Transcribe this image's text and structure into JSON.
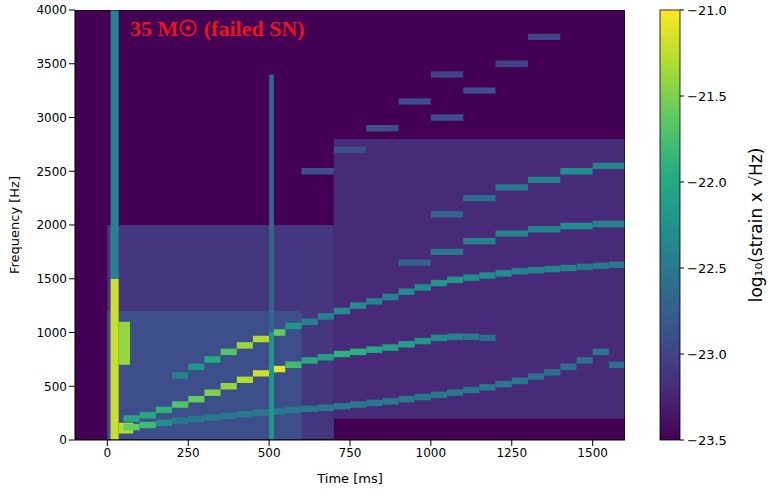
{
  "chart_data": {
    "type": "heatmap",
    "title": "35 M☉ (failed SN)",
    "x_label": "Time [ms]",
    "y_label": "Frequency [Hz]",
    "xlim": [
      -100,
      1600
    ],
    "xticks": [
      0,
      250,
      500,
      750,
      1000,
      1250,
      1500
    ],
    "ylim": [
      0,
      4000
    ],
    "yticks": [
      0,
      500,
      1000,
      1500,
      2000,
      2500,
      3000,
      3500,
      4000
    ],
    "colorbar_label": "log₁₀(strain x √Hz)",
    "colorbar_range": [
      -23.5,
      -21
    ],
    "colorbar_ticks": [
      {
        "value": -21,
        "label": "−21.0"
      },
      {
        "value": -21.5,
        "label": "−21.5"
      },
      {
        "value": -22,
        "label": "−22.0"
      },
      {
        "value": -22.5,
        "label": "−22.5"
      },
      {
        "value": -23,
        "label": "−23.0"
      },
      {
        "value": -23.5,
        "label": "−23.5"
      }
    ],
    "cells": [
      [
        0,
        700,
        0,
        2000,
        -23.1
      ],
      [
        700,
        1600,
        200,
        2800,
        -23.2
      ],
      [
        0,
        600,
        0,
        1200,
        -22.9
      ],
      [
        10,
        35,
        0,
        1500,
        -21.2
      ],
      [
        10,
        35,
        1500,
        4000,
        -22.4
      ],
      [
        35,
        70,
        700,
        1100,
        -21.4
      ],
      [
        35,
        80,
        60,
        160,
        -21.3
      ],
      [
        50,
        100,
        90,
        150,
        -21.6
      ],
      [
        100,
        150,
        110,
        170,
        -21.8
      ],
      [
        150,
        200,
        130,
        190,
        -22.3
      ],
      [
        200,
        250,
        150,
        210,
        -22.5
      ],
      [
        250,
        300,
        165,
        225,
        -22.5
      ],
      [
        300,
        350,
        180,
        240,
        -22.5
      ],
      [
        350,
        400,
        195,
        255,
        -22.5
      ],
      [
        400,
        450,
        210,
        270,
        -22.5
      ],
      [
        450,
        500,
        225,
        285,
        -22.5
      ],
      [
        500,
        550,
        235,
        295,
        -22.5
      ],
      [
        550,
        600,
        250,
        310,
        -22.5
      ],
      [
        600,
        650,
        260,
        320,
        -22.5
      ],
      [
        650,
        700,
        270,
        330,
        -22.5
      ],
      [
        700,
        750,
        285,
        345,
        -22.5
      ],
      [
        750,
        800,
        300,
        360,
        -22.5
      ],
      [
        800,
        850,
        315,
        375,
        -22.5
      ],
      [
        850,
        900,
        330,
        390,
        -22.5
      ],
      [
        900,
        950,
        350,
        410,
        -22.5
      ],
      [
        950,
        1000,
        370,
        430,
        -22.5
      ],
      [
        1000,
        1050,
        390,
        450,
        -22.5
      ],
      [
        1050,
        1100,
        410,
        470,
        -22.5
      ],
      [
        1100,
        1150,
        435,
        495,
        -22.5
      ],
      [
        1150,
        1200,
        460,
        520,
        -22.5
      ],
      [
        1200,
        1250,
        490,
        550,
        -22.5
      ],
      [
        1250,
        1300,
        520,
        580,
        -22.5
      ],
      [
        1300,
        1350,
        560,
        620,
        -22.6
      ],
      [
        1350,
        1400,
        600,
        660,
        -22.6
      ],
      [
        1400,
        1450,
        650,
        710,
        -22.6
      ],
      [
        1450,
        1500,
        710,
        770,
        -22.6
      ],
      [
        1500,
        1550,
        790,
        850,
        -22.5
      ],
      [
        1550,
        1600,
        670,
        730,
        -22.6
      ],
      [
        50,
        100,
        170,
        230,
        -22.0
      ],
      [
        100,
        150,
        200,
        260,
        -22.0
      ],
      [
        150,
        200,
        250,
        310,
        -21.9
      ],
      [
        200,
        250,
        300,
        360,
        -21.7
      ],
      [
        250,
        300,
        350,
        410,
        -21.6
      ],
      [
        300,
        350,
        410,
        470,
        -21.5
      ],
      [
        350,
        400,
        470,
        530,
        -21.4
      ],
      [
        400,
        450,
        530,
        590,
        -21.3
      ],
      [
        450,
        500,
        590,
        650,
        -21.2
      ],
      [
        500,
        550,
        630,
        690,
        -21.1
      ],
      [
        550,
        600,
        670,
        730,
        -21.8
      ],
      [
        600,
        650,
        710,
        770,
        -22.0
      ],
      [
        650,
        700,
        740,
        800,
        -22.1
      ],
      [
        700,
        750,
        770,
        830,
        -21.9
      ],
      [
        750,
        800,
        790,
        850,
        -21.9
      ],
      [
        800,
        850,
        810,
        870,
        -22.0
      ],
      [
        850,
        900,
        830,
        890,
        -22.1
      ],
      [
        900,
        950,
        860,
        920,
        -22.1
      ],
      [
        950,
        1000,
        890,
        950,
        -22.2
      ],
      [
        1000,
        1050,
        920,
        980,
        -22.3
      ],
      [
        1050,
        1100,
        930,
        990,
        -22.4
      ],
      [
        1100,
        1150,
        930,
        990,
        -22.5
      ],
      [
        1150,
        1200,
        920,
        980,
        -22.6
      ],
      [
        200,
        250,
        570,
        630,
        -22.4
      ],
      [
        250,
        300,
        650,
        710,
        -22.2
      ],
      [
        300,
        350,
        720,
        780,
        -22.0
      ],
      [
        350,
        400,
        790,
        850,
        -21.7
      ],
      [
        400,
        450,
        850,
        910,
        -21.4
      ],
      [
        450,
        500,
        910,
        970,
        -21.3
      ],
      [
        500,
        550,
        970,
        1030,
        -21.6
      ],
      [
        550,
        600,
        1030,
        1090,
        -22.2
      ],
      [
        600,
        650,
        1070,
        1130,
        -22.4
      ],
      [
        650,
        700,
        1120,
        1180,
        -22.4
      ],
      [
        700,
        750,
        1170,
        1230,
        -22.3
      ],
      [
        750,
        800,
        1220,
        1280,
        -22.3
      ],
      [
        800,
        850,
        1260,
        1320,
        -22.4
      ],
      [
        850,
        900,
        1300,
        1360,
        -22.4
      ],
      [
        900,
        950,
        1350,
        1410,
        -22.3
      ],
      [
        950,
        1000,
        1390,
        1450,
        -22.3
      ],
      [
        1000,
        1050,
        1430,
        1490,
        -22.2
      ],
      [
        1050,
        1100,
        1460,
        1520,
        -22.2
      ],
      [
        1100,
        1150,
        1480,
        1540,
        -22.3
      ],
      [
        1150,
        1200,
        1500,
        1560,
        -22.3
      ],
      [
        1200,
        1250,
        1520,
        1580,
        -22.3
      ],
      [
        1250,
        1300,
        1540,
        1600,
        -22.4
      ],
      [
        1300,
        1350,
        1550,
        1610,
        -22.4
      ],
      [
        1350,
        1400,
        1560,
        1620,
        -22.4
      ],
      [
        1400,
        1450,
        1570,
        1630,
        -22.4
      ],
      [
        1450,
        1500,
        1580,
        1640,
        -22.5
      ],
      [
        1500,
        1550,
        1590,
        1650,
        -22.5
      ],
      [
        1550,
        1600,
        1600,
        1660,
        -22.5
      ],
      [
        900,
        1000,
        1620,
        1680,
        -22.7
      ],
      [
        1000,
        1100,
        1720,
        1780,
        -22.5
      ],
      [
        1100,
        1200,
        1820,
        1880,
        -22.4
      ],
      [
        1200,
        1300,
        1890,
        1950,
        -22.4
      ],
      [
        1300,
        1400,
        1930,
        1990,
        -22.4
      ],
      [
        1400,
        1500,
        1960,
        2020,
        -22.3
      ],
      [
        1500,
        1600,
        1980,
        2040,
        -22.4
      ],
      [
        1000,
        1100,
        2070,
        2130,
        -22.7
      ],
      [
        1100,
        1200,
        2220,
        2280,
        -22.6
      ],
      [
        1200,
        1300,
        2320,
        2380,
        -22.5
      ],
      [
        1300,
        1400,
        2390,
        2450,
        -22.4
      ],
      [
        1400,
        1500,
        2470,
        2530,
        -22.3
      ],
      [
        1500,
        1600,
        2520,
        2580,
        -22.4
      ],
      [
        600,
        700,
        2470,
        2530,
        -22.9
      ],
      [
        700,
        800,
        2670,
        2730,
        -22.9
      ],
      [
        800,
        900,
        2870,
        2930,
        -22.9
      ],
      [
        900,
        1000,
        3120,
        3180,
        -22.9
      ],
      [
        1000,
        1100,
        3370,
        3430,
        -23.0
      ],
      [
        1000,
        1100,
        2970,
        3030,
        -22.9
      ],
      [
        1100,
        1200,
        3220,
        3280,
        -22.9
      ],
      [
        1200,
        1300,
        3470,
        3530,
        -23.0
      ],
      [
        1300,
        1400,
        3720,
        3780,
        -23.0
      ],
      [
        500,
        515,
        0,
        1000,
        -22.2
      ],
      [
        500,
        515,
        1000,
        3400,
        -22.7
      ]
    ]
  }
}
